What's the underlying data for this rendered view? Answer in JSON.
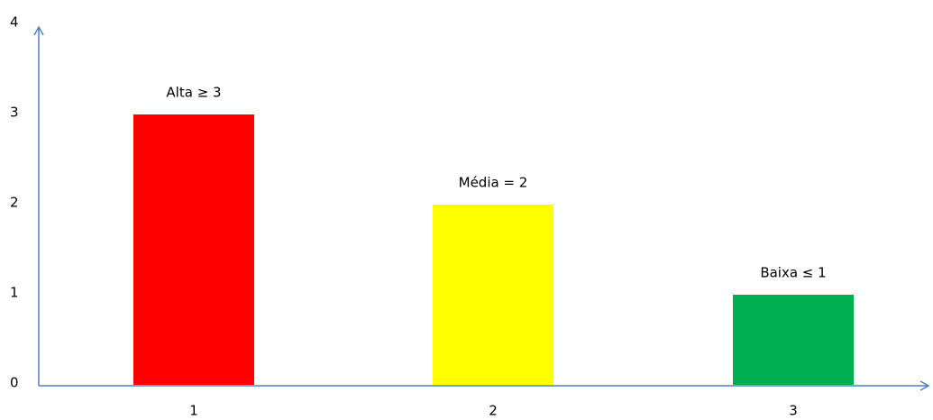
{
  "chart_data": {
    "type": "bar",
    "categories": [
      "1",
      "2",
      "3"
    ],
    "values": [
      3,
      2,
      1
    ],
    "value_labels": [
      "Alta  ≥ 3",
      "Média = 2",
      "Baixa ≤ 1"
    ],
    "colors": [
      "#ff0000",
      "#ffff00",
      "#00b050"
    ],
    "ylim": [
      0,
      4
    ],
    "yticks": [
      0,
      1,
      2,
      3,
      4
    ],
    "grid": false
  }
}
